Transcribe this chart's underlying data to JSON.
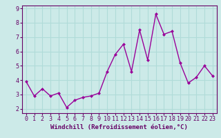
{
  "x": [
    0,
    1,
    2,
    3,
    4,
    5,
    6,
    7,
    8,
    9,
    10,
    11,
    12,
    13,
    14,
    15,
    16,
    17,
    18,
    19,
    20,
    21,
    22,
    23
  ],
  "y": [
    3.9,
    2.9,
    3.4,
    2.9,
    3.1,
    2.1,
    2.6,
    2.8,
    2.9,
    3.1,
    4.6,
    5.8,
    6.5,
    4.6,
    7.5,
    5.4,
    8.6,
    7.2,
    7.4,
    5.2,
    3.8,
    4.2,
    5.0,
    4.3
  ],
  "line_color": "#990099",
  "marker": "D",
  "marker_size": 2,
  "line_width": 1.0,
  "bg_color": "#cceae8",
  "grid_color": "#b0dbd8",
  "axis_color": "#660066",
  "xlabel": "Windchill (Refroidissement éolien,°C)",
  "xlabel_fontsize": 6.5,
  "tick_fontsize": 6,
  "ylim": [
    1.7,
    9.2
  ],
  "xlim": [
    -0.5,
    23.5
  ],
  "yticks": [
    2,
    3,
    4,
    5,
    6,
    7,
    8,
    9
  ],
  "xticks": [
    0,
    1,
    2,
    3,
    4,
    5,
    6,
    7,
    8,
    9,
    10,
    11,
    12,
    13,
    14,
    15,
    16,
    17,
    18,
    19,
    20,
    21,
    22,
    23
  ]
}
